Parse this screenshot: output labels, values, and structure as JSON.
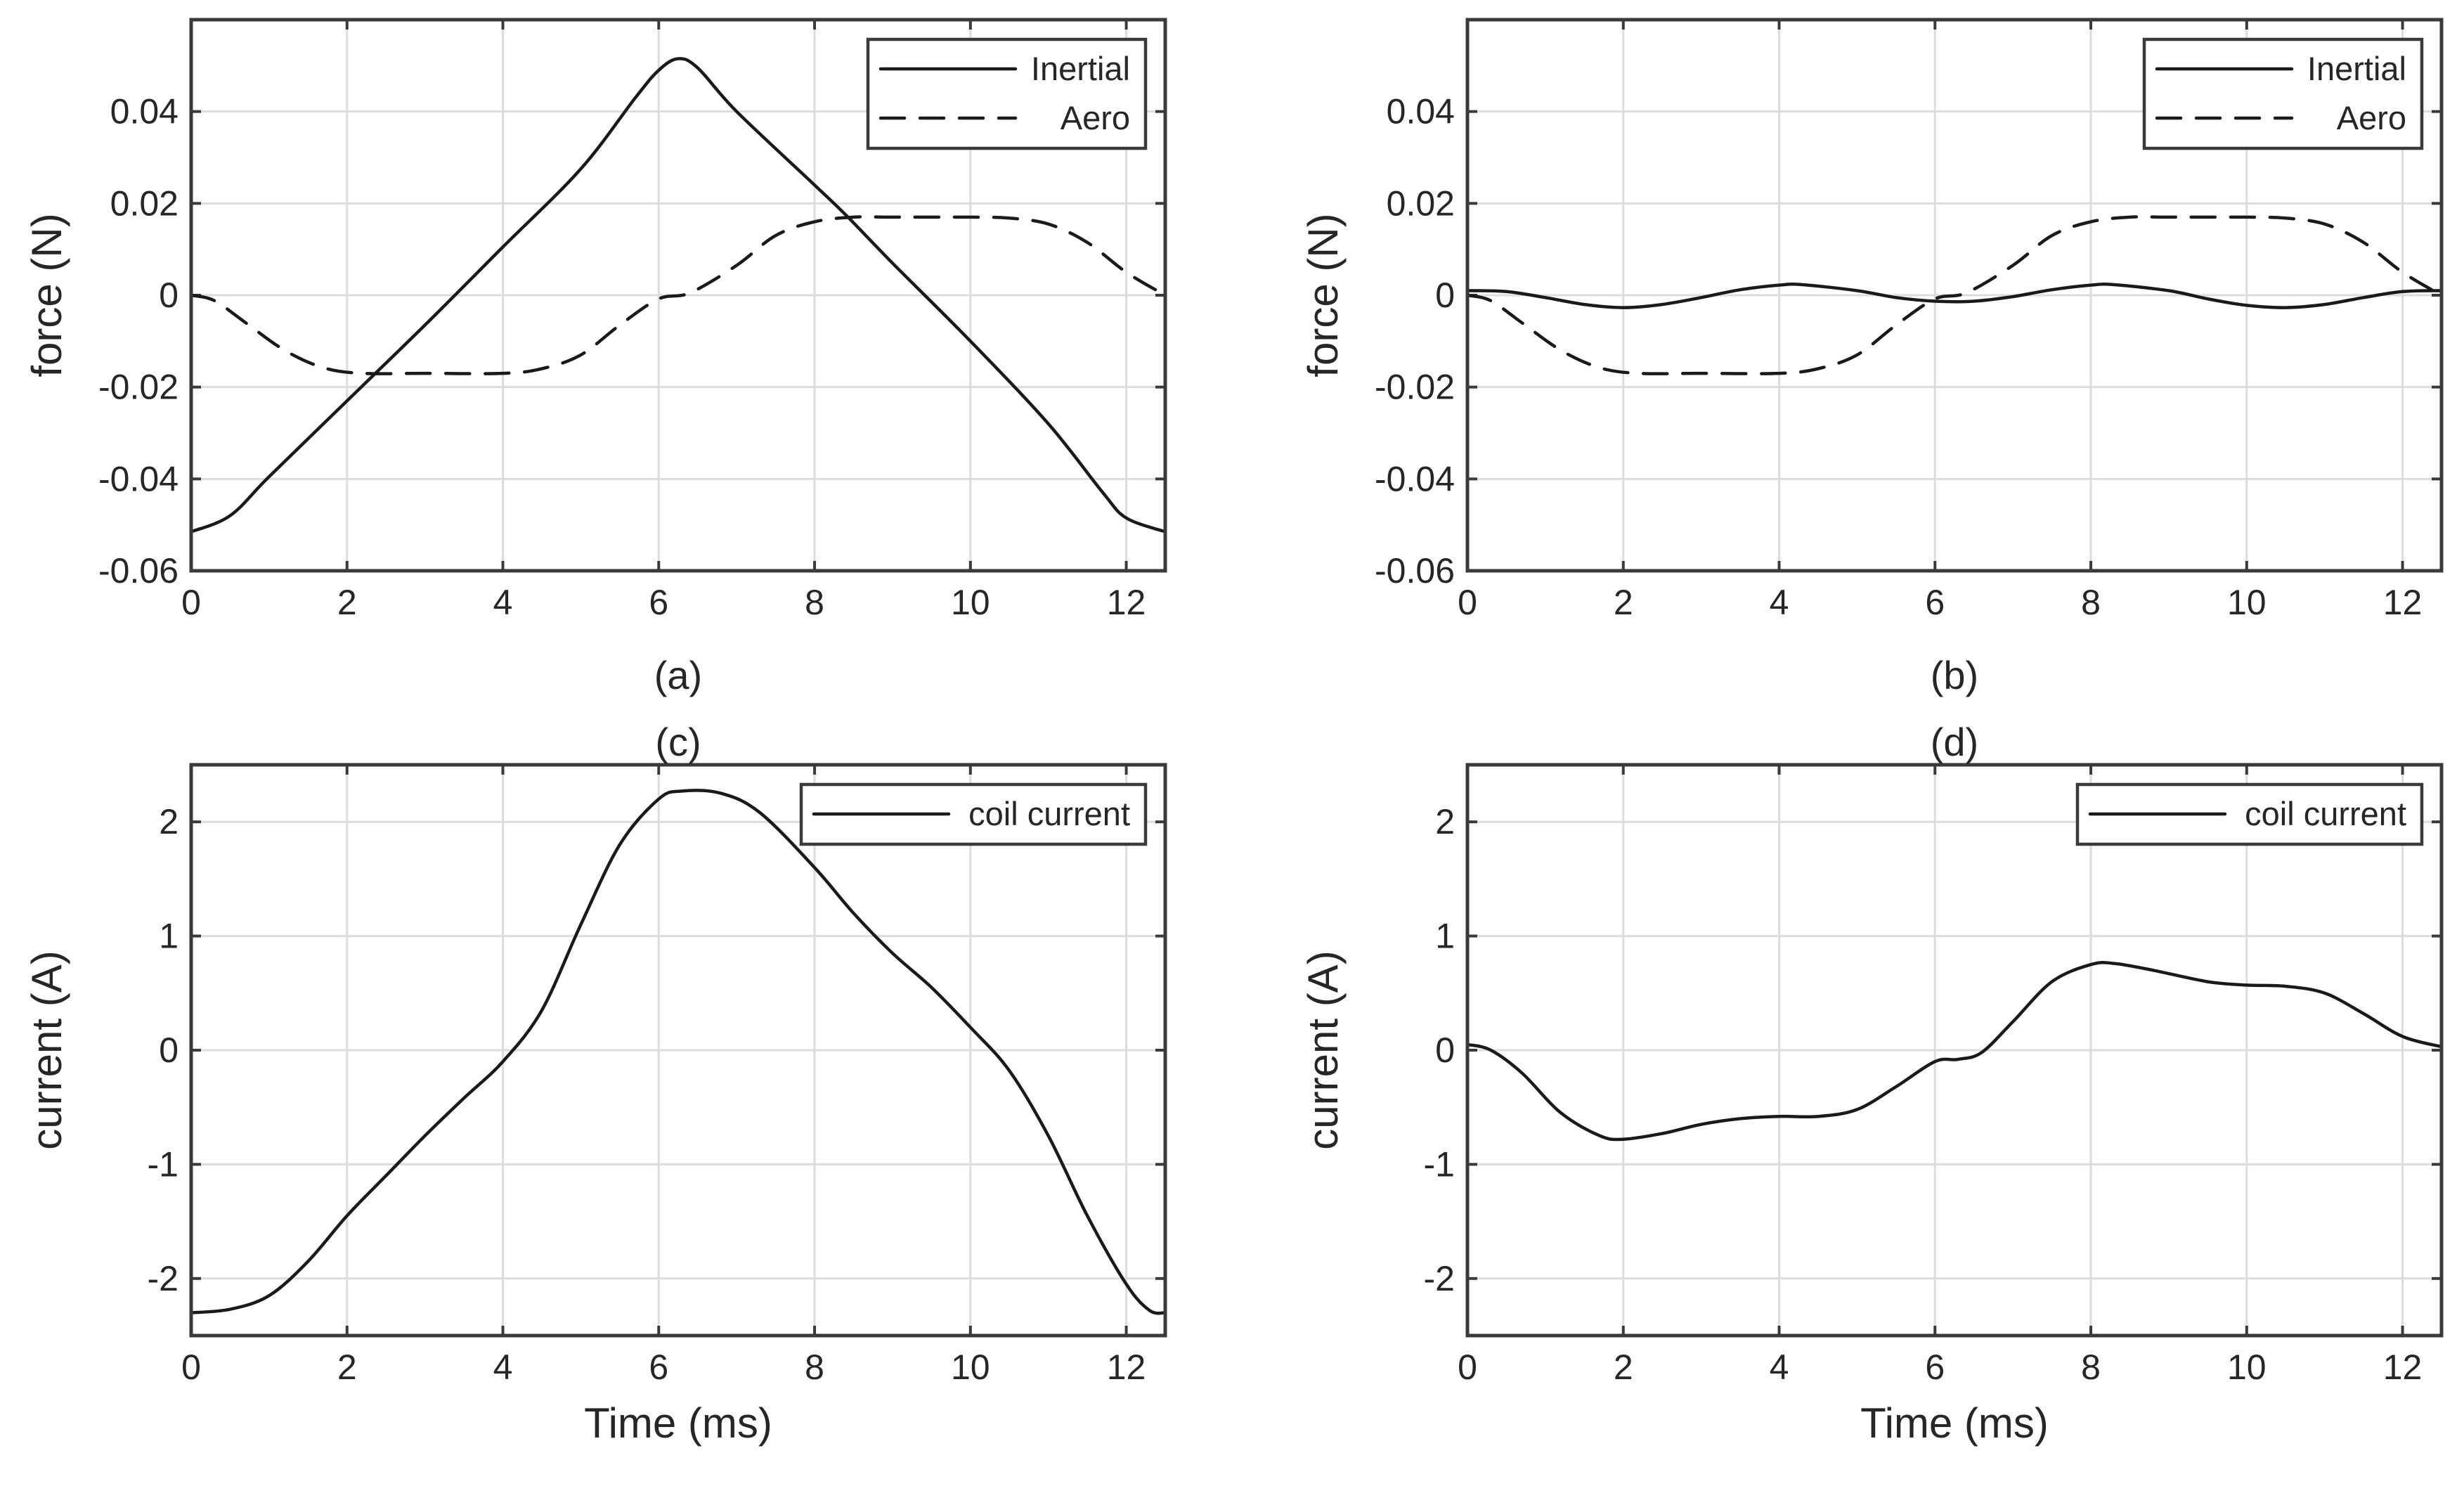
{
  "chart_data": [
    {
      "type": "line",
      "caption": "(a)",
      "caption_position": "bottom",
      "xlabel": "",
      "ylabel": "force (N)",
      "xlim": [
        0,
        12.5
      ],
      "ylim": [
        -0.06,
        0.06
      ],
      "xticks": [
        0,
        2,
        4,
        6,
        8,
        10,
        12
      ],
      "xtick_labels": [
        "0",
        "2",
        "4",
        "6",
        "8",
        "10",
        "12"
      ],
      "yticks": [
        -0.06,
        -0.04,
        -0.02,
        0,
        0.02,
        0.04
      ],
      "ytick_labels": [
        "-0.06",
        "-0.04",
        "-0.02",
        "0",
        "0.02",
        "0.04"
      ],
      "grid": true,
      "legend_position": "top-right",
      "series": [
        {
          "name": "Inertial",
          "style": "solid",
          "x": [
            0,
            0.5,
            1,
            2,
            3,
            4,
            5,
            5.7,
            6,
            6.25,
            6.5,
            7,
            8,
            8.4,
            9,
            10,
            11,
            11.7,
            12,
            12.5
          ],
          "y": [
            -0.0515,
            -0.048,
            -0.0395,
            -0.023,
            -0.0065,
            0.0105,
            0.0275,
            0.043,
            0.049,
            0.0515,
            0.0495,
            0.04,
            0.024,
            0.0175,
            0.007,
            -0.01,
            -0.028,
            -0.043,
            -0.0485,
            -0.0515
          ]
        },
        {
          "name": "Aero",
          "style": "dashed",
          "x": [
            0,
            0.3,
            0.7,
            1.2,
            1.7,
            2.2,
            3,
            4,
            4.5,
            5,
            5.5,
            6,
            6.4,
            7,
            7.5,
            8,
            8.5,
            9,
            10,
            10.5,
            11,
            11.5,
            12,
            12.5
          ],
          "y": [
            0,
            -0.0012,
            -0.006,
            -0.012,
            -0.0158,
            -0.017,
            -0.017,
            -0.017,
            -0.016,
            -0.013,
            -0.0065,
            -0.0008,
            0.0005,
            0.0065,
            0.013,
            0.016,
            0.017,
            0.017,
            0.017,
            0.0168,
            0.0155,
            0.0115,
            0.005,
            0
          ]
        }
      ]
    },
    {
      "type": "line",
      "caption": "(b)",
      "caption_position": "bottom",
      "xlabel": "",
      "ylabel": "force (N)",
      "xlim": [
        0,
        12.5
      ],
      "ylim": [
        -0.06,
        0.06
      ],
      "xticks": [
        0,
        2,
        4,
        6,
        8,
        10,
        12
      ],
      "xtick_labels": [
        "0",
        "2",
        "4",
        "6",
        "8",
        "10",
        "12"
      ],
      "yticks": [
        -0.06,
        -0.04,
        -0.02,
        0,
        0.02,
        0.04
      ],
      "ytick_labels": [
        "-0.06",
        "-0.04",
        "-0.02",
        "0",
        "0.02",
        "0.04"
      ],
      "grid": true,
      "legend_position": "top-right",
      "series": [
        {
          "name": "Inertial",
          "style": "solid",
          "x": [
            0,
            0.5,
            1,
            1.5,
            2,
            2.5,
            3,
            3.5,
            4,
            4.3,
            5,
            5.5,
            6,
            6.5,
            7,
            7.5,
            8,
            8.3,
            9,
            9.5,
            10,
            10.5,
            11,
            11.5,
            12,
            12.5
          ],
          "y": [
            0.001,
            0.0008,
            -0.0005,
            -0.002,
            -0.0027,
            -0.002,
            -0.0005,
            0.0012,
            0.0022,
            0.0023,
            0.001,
            -0.0005,
            -0.0013,
            -0.0013,
            -0.0003,
            0.0012,
            0.0022,
            0.0023,
            0.001,
            -0.0008,
            -0.0022,
            -0.0027,
            -0.002,
            -0.0005,
            0.0008,
            0.001
          ]
        },
        {
          "name": "Aero",
          "style": "dashed",
          "x": [
            0,
            0.3,
            0.7,
            1.2,
            1.7,
            2.2,
            3,
            4,
            4.5,
            5,
            5.5,
            6,
            6.4,
            7,
            7.5,
            8,
            8.5,
            9,
            10,
            10.5,
            11,
            11.5,
            12,
            12.5
          ],
          "y": [
            0,
            -0.0012,
            -0.006,
            -0.012,
            -0.0158,
            -0.017,
            -0.017,
            -0.017,
            -0.016,
            -0.013,
            -0.0065,
            -0.0008,
            0.0005,
            0.0065,
            0.013,
            0.016,
            0.017,
            0.017,
            0.017,
            0.0168,
            0.0155,
            0.0115,
            0.005,
            0
          ]
        }
      ]
    },
    {
      "type": "line",
      "caption": "(c)",
      "caption_position": "top",
      "xlabel": "Time (ms)",
      "ylabel": "current (A)",
      "xlim": [
        0,
        12.5
      ],
      "ylim": [
        -2.5,
        2.5
      ],
      "xticks": [
        0,
        2,
        4,
        6,
        8,
        10,
        12
      ],
      "xtick_labels": [
        "0",
        "2",
        "4",
        "6",
        "8",
        "10",
        "12"
      ],
      "yticks": [
        -2,
        -1,
        0,
        1,
        2
      ],
      "ytick_labels": [
        "-2",
        "-1",
        "0",
        "1",
        "2"
      ],
      "grid": true,
      "legend_position": "top-right",
      "series": [
        {
          "name": "coil current",
          "style": "solid",
          "x": [
            0,
            0.5,
            1,
            1.5,
            2,
            2.5,
            3,
            3.5,
            4,
            4.5,
            5,
            5.5,
            6,
            6.3,
            6.8,
            7.3,
            8,
            8.5,
            9,
            9.5,
            10,
            10.5,
            11,
            11.5,
            12,
            12.3,
            12.5
          ],
          "y": [
            -2.3,
            -2.27,
            -2.15,
            -1.85,
            -1.45,
            -1.1,
            -0.75,
            -0.42,
            -0.1,
            0.35,
            1.1,
            1.8,
            2.2,
            2.27,
            2.25,
            2.08,
            1.6,
            1.2,
            0.85,
            0.55,
            0.2,
            -0.18,
            -0.75,
            -1.45,
            -2.05,
            -2.28,
            -2.3
          ]
        }
      ]
    },
    {
      "type": "line",
      "caption": "(d)",
      "caption_position": "top",
      "xlabel": "Time (ms)",
      "ylabel": "current (A)",
      "xlim": [
        0,
        12.5
      ],
      "ylim": [
        -2.5,
        2.5
      ],
      "xticks": [
        0,
        2,
        4,
        6,
        8,
        10,
        12
      ],
      "xtick_labels": [
        "0",
        "2",
        "4",
        "6",
        "8",
        "10",
        "12"
      ],
      "yticks": [
        -2,
        -1,
        0,
        1,
        2
      ],
      "ytick_labels": [
        "-2",
        "-1",
        "0",
        "1",
        "2"
      ],
      "grid": true,
      "legend_position": "top-right",
      "series": [
        {
          "name": "coil current",
          "style": "solid",
          "x": [
            0,
            0.3,
            0.7,
            1.2,
            1.7,
            2,
            2.5,
            3,
            3.5,
            4,
            4.5,
            5,
            5.5,
            6,
            6.3,
            6.6,
            7,
            7.5,
            8,
            8.3,
            8.8,
            9.5,
            10,
            10.5,
            11,
            11.5,
            12,
            12.5
          ],
          "y": [
            0.05,
            0.0,
            -0.2,
            -0.55,
            -0.75,
            -0.78,
            -0.73,
            -0.65,
            -0.6,
            -0.58,
            -0.58,
            -0.52,
            -0.32,
            -0.1,
            -0.08,
            -0.02,
            0.25,
            0.6,
            0.75,
            0.76,
            0.7,
            0.6,
            0.57,
            0.56,
            0.5,
            0.32,
            0.12,
            0.03
          ]
        }
      ]
    }
  ]
}
